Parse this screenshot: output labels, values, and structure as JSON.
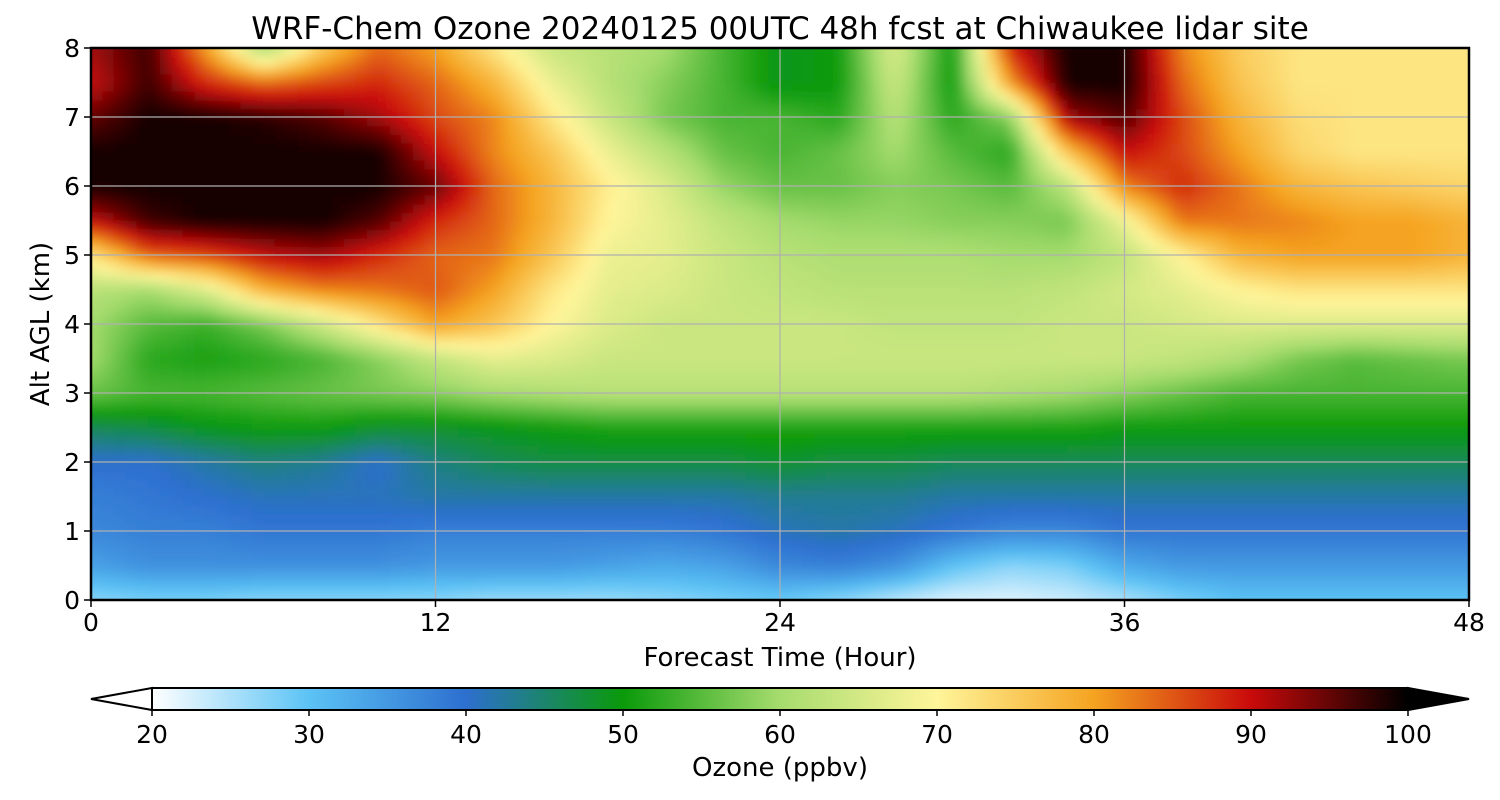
{
  "chart_data": {
    "type": "heatmap",
    "title": "WRF-Chem Ozone  20240125 00UTC 48h fcst at Chiwaukee lidar site",
    "xlabel": "Forecast Time (Hour)",
    "ylabel": "Alt AGL (km)",
    "xlim": [
      0,
      48
    ],
    "ylim": [
      0,
      8
    ],
    "xticks": [
      0,
      12,
      24,
      36,
      48
    ],
    "yticks": [
      0,
      1,
      2,
      3,
      4,
      5,
      6,
      7,
      8
    ],
    "grid": true,
    "colorbar": {
      "label": "Ozone  (ppbv)",
      "range": [
        20,
        100
      ],
      "ticks": [
        20,
        30,
        40,
        50,
        60,
        70,
        80,
        90,
        100
      ],
      "extend": "both",
      "orientation": "horizontal",
      "colors": [
        "#ffffff",
        "#5bc3f5",
        "#2d6fcf",
        "#0a9a0a",
        "#a6dc6e",
        "#fff59a",
        "#f5a320",
        "#c90a0a",
        "#000000"
      ]
    },
    "x": [
      0,
      2,
      4,
      6,
      8,
      10,
      12,
      14,
      16,
      18,
      20,
      22,
      24,
      26,
      28,
      30,
      32,
      34,
      36,
      38,
      40,
      42,
      44,
      46,
      48
    ],
    "y": [
      0,
      0.5,
      1,
      1.5,
      2,
      2.5,
      3,
      3.5,
      4,
      4.5,
      5,
      5.5,
      6,
      6.5,
      7,
      7.5,
      8
    ],
    "z": [
      [
        27,
        28,
        28,
        27,
        27,
        27,
        27,
        26,
        26,
        26,
        27,
        28,
        29,
        27,
        24,
        22,
        22,
        23,
        25,
        28,
        30,
        30,
        30,
        30,
        30
      ],
      [
        34,
        36,
        36,
        36,
        36,
        36,
        35,
        35,
        35,
        34,
        33,
        34,
        37,
        38,
        36,
        30,
        27,
        28,
        33,
        35,
        35,
        35,
        35,
        35,
        35
      ],
      [
        37,
        38,
        38,
        39,
        39,
        39,
        38,
        38,
        38,
        38,
        38,
        39,
        41,
        42,
        41,
        39,
        37,
        37,
        39,
        39,
        39,
        39,
        39,
        39,
        39
      ],
      [
        38,
        39,
        40,
        41,
        41,
        41,
        42,
        42,
        42,
        42,
        42,
        42,
        43,
        43,
        43,
        42,
        42,
        42,
        42,
        42,
        42,
        42,
        42,
        42,
        42
      ],
      [
        40,
        40,
        42,
        44,
        43,
        40,
        44,
        46,
        47,
        47,
        47,
        47,
        48,
        47,
        47,
        46,
        46,
        46,
        46,
        46,
        46,
        46,
        46,
        46,
        46
      ],
      [
        46,
        47,
        49,
        50,
        50,
        48,
        48,
        49,
        50,
        51,
        51,
        51,
        51,
        51,
        51,
        51,
        51,
        51,
        50,
        50,
        50,
        50,
        50,
        50,
        50
      ],
      [
        56,
        54,
        54,
        55,
        56,
        57,
        58,
        60,
        61,
        62,
        62,
        62,
        62,
        62,
        62,
        62,
        61,
        60,
        58,
        56,
        54,
        54,
        54,
        54,
        54
      ],
      [
        60,
        52,
        51,
        52,
        54,
        58,
        63,
        67,
        66,
        64,
        64,
        64,
        64,
        64,
        64,
        64,
        64,
        64,
        64,
        63,
        61,
        57,
        55,
        56,
        57
      ],
      [
        60,
        55,
        53,
        57,
        64,
        72,
        80,
        76,
        70,
        66,
        64,
        64,
        64,
        64,
        63,
        63,
        63,
        64,
        64,
        65,
        66,
        66,
        66,
        66,
        66
      ],
      [
        62,
        60,
        66,
        78,
        82,
        83,
        85,
        80,
        72,
        67,
        66,
        64,
        63,
        62,
        62,
        62,
        62,
        63,
        65,
        67,
        70,
        72,
        72,
        72,
        72
      ],
      [
        72,
        84,
        86,
        90,
        92,
        88,
        84,
        83,
        76,
        68,
        67,
        64,
        62,
        61,
        61,
        61,
        60,
        60,
        63,
        70,
        78,
        80,
        80,
        80,
        78
      ],
      [
        90,
        97,
        99,
        99,
        99,
        96,
        88,
        84,
        78,
        70,
        67,
        63,
        60,
        59,
        59,
        58,
        58,
        57,
        68,
        83,
        83,
        82,
        80,
        80,
        78
      ],
      [
        99,
        99,
        99,
        99,
        99,
        99,
        95,
        84,
        78,
        71,
        66,
        59,
        56,
        56,
        58,
        57,
        55,
        62,
        82,
        88,
        83,
        78,
        76,
        75,
        74
      ],
      [
        99,
        99,
        99,
        99,
        99,
        99,
        90,
        82,
        76,
        68,
        62,
        56,
        54,
        56,
        60,
        55,
        52,
        76,
        90,
        86,
        80,
        74,
        72,
        72,
        72
      ],
      [
        95,
        99,
        99,
        98,
        96,
        92,
        86,
        82,
        72,
        64,
        57,
        54,
        54,
        52,
        62,
        52,
        58,
        92,
        96,
        86,
        78,
        73,
        72,
        72,
        72
      ],
      [
        90,
        97,
        88,
        84,
        86,
        88,
        84,
        78,
        68,
        62,
        58,
        54,
        49,
        50,
        64,
        50,
        80,
        99,
        99,
        84,
        76,
        72,
        72,
        72,
        72
      ],
      [
        92,
        97,
        80,
        60,
        75,
        84,
        80,
        72,
        64,
        62,
        60,
        54,
        49,
        50,
        66,
        50,
        88,
        99,
        99,
        82,
        75,
        72,
        72,
        72,
        72
      ]
    ]
  }
}
